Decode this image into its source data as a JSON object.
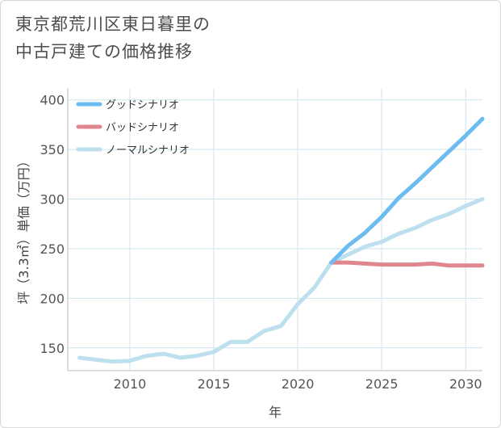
{
  "title_lines": [
    "東京都荒川区東日暮里の",
    "中古戸建ての価格推移"
  ],
  "chart_data": {
    "type": "line",
    "xlabel": "年",
    "ylabel": "坪（3.3㎡）単価（万円）",
    "xlim": [
      2006.3,
      2031
    ],
    "ylim": [
      127,
      412
    ],
    "xticks": [
      2010,
      2015,
      2020,
      2025,
      2030
    ],
    "yticks": [
      150,
      200,
      250,
      300,
      350,
      400
    ],
    "grid": true,
    "legend_position": "top-left",
    "series": [
      {
        "name": "グッドシナリオ",
        "color": "#6dbcef",
        "x": [
          2022,
          2023,
          2024,
          2025,
          2026,
          2027,
          2028,
          2029,
          2030,
          2031
        ],
        "y": [
          236,
          253,
          266,
          282,
          301,
          316,
          332,
          348,
          364,
          381
        ]
      },
      {
        "name": "バッドシナリオ",
        "color": "#e0868f",
        "x": [
          2022,
          2023,
          2024,
          2025,
          2026,
          2027,
          2028,
          2029,
          2030,
          2031
        ],
        "y": [
          236,
          236,
          235,
          234,
          234,
          234,
          235,
          233,
          233,
          233
        ]
      },
      {
        "name": "ノーマルシナリオ",
        "color": "#bde0ee",
        "x": [
          2007,
          2008,
          2009,
          2010,
          2011,
          2012,
          2013,
          2014,
          2015,
          2016,
          2017,
          2018,
          2019,
          2020,
          2021,
          2022,
          2023,
          2024,
          2025,
          2026,
          2027,
          2028,
          2029,
          2030,
          2031
        ],
        "y": [
          140,
          138,
          136,
          137,
          142,
          144,
          140,
          142,
          146,
          156,
          156,
          167,
          172,
          194,
          211,
          236,
          244,
          252,
          257,
          265,
          271,
          279,
          285,
          293,
          300
        ]
      }
    ]
  }
}
